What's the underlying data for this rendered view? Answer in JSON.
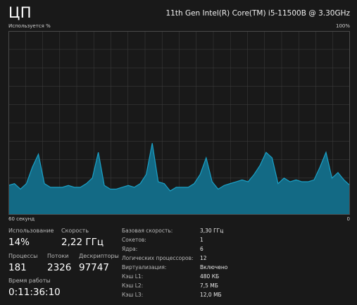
{
  "header": {
    "title": "ЦП",
    "cpu_model": "11th Gen Intel(R) Core(TM) i5-11500B @ 3.30GHz"
  },
  "graph": {
    "y_label": "Используется %",
    "y_max_label": "100%",
    "x_left_label": "60 секунд",
    "x_right_label": "0",
    "line_color": "#1ba1c7",
    "fill_color": "#136a85",
    "grid_color": "#3a3a3a",
    "border_color": "#4a4a4a",
    "chart_data": {
      "type": "area",
      "ylim": [
        0,
        100
      ],
      "xlim": [
        60,
        0
      ],
      "values": [
        16,
        17,
        14,
        17,
        26,
        33,
        17,
        15,
        15,
        15,
        16,
        15,
        15,
        17,
        20,
        34,
        16,
        14,
        14,
        15,
        16,
        15,
        17,
        22,
        39,
        18,
        17,
        13,
        15,
        15,
        15,
        17,
        22,
        31,
        18,
        14,
        16,
        17,
        18,
        19,
        18,
        22,
        27,
        34,
        31,
        17,
        20,
        18,
        19,
        18,
        18,
        19,
        26,
        34,
        20,
        23,
        19,
        16
      ]
    }
  },
  "stats": {
    "utilization": {
      "label": "Использование",
      "value": "14%"
    },
    "speed": {
      "label": "Скорость",
      "value": "2,22 ГГц"
    },
    "processes": {
      "label": "Процессы",
      "value": "181"
    },
    "threads": {
      "label": "Потоки",
      "value": "2326"
    },
    "handles": {
      "label": "Дескрипторы",
      "value": "97747"
    },
    "uptime": {
      "label": "Время работы",
      "value": "0:11:36:10"
    }
  },
  "details": [
    {
      "label": "Базовая скорость:",
      "value": "3,30 ГГц"
    },
    {
      "label": "Сокетов:",
      "value": "1"
    },
    {
      "label": "Ядра:",
      "value": "6"
    },
    {
      "label": "Логических процессоров:",
      "value": "12"
    },
    {
      "label": "Виртуализация:",
      "value": "Включено"
    },
    {
      "label": "Кэш L1:",
      "value": "480 КБ"
    },
    {
      "label": "Кэш L2:",
      "value": "7,5 МБ"
    },
    {
      "label": "Кэш L3:",
      "value": "12,0 МБ"
    }
  ]
}
